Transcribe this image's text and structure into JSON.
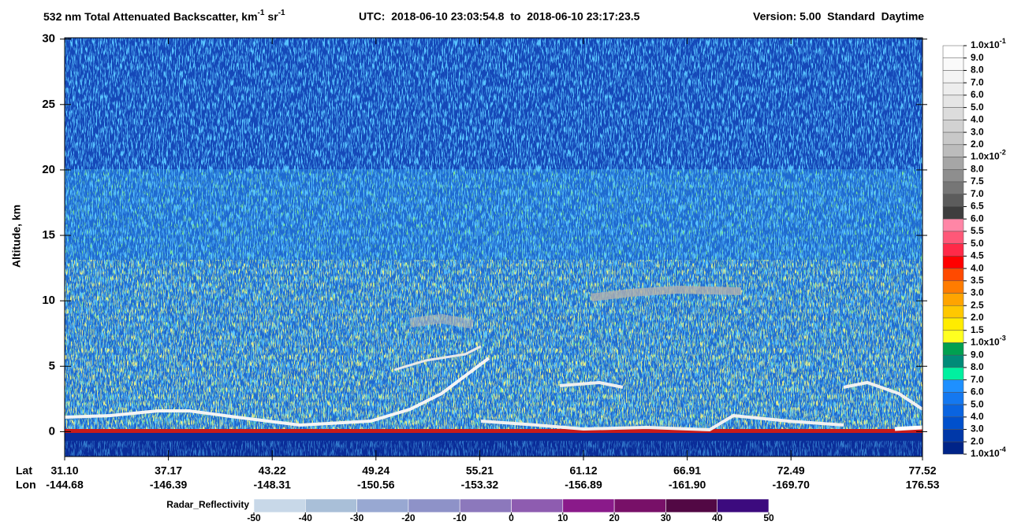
{
  "chart_data": {
    "type": "heatmap",
    "title": {
      "main": "532 nm Total Attenuated Backscatter, km",
      "exp1": "-1",
      "unit2": "sr",
      "exp2": "-1",
      "time": "UTC:  2018-06-10 23:03:54.8  to  2018-06-10 23:17:23.5",
      "version": "Version: 5.00  Standard  Daytime"
    },
    "ylabel": "Altitude, km",
    "ylim": [
      -1.9,
      30.1
    ],
    "yticks": [
      0,
      5,
      10,
      15,
      20,
      25,
      30
    ],
    "x": {
      "lat_label": "Lat",
      "lon_label": "Lon",
      "ticks": [
        {
          "lat": "31.10",
          "lon": "-144.68"
        },
        {
          "lat": "37.17",
          "lon": "-146.39"
        },
        {
          "lat": "43.22",
          "lon": "-148.31"
        },
        {
          "lat": "49.24",
          "lon": "-150.56"
        },
        {
          "lat": "55.21",
          "lon": "-153.32"
        },
        {
          "lat": "61.12",
          "lon": "-156.89"
        },
        {
          "lat": "66.91",
          "lon": "-161.90"
        },
        {
          "lat": "72.49",
          "lon": "-169.70"
        },
        {
          "lat": "77.52",
          "lon": "176.53"
        }
      ]
    },
    "colorbar": {
      "labels": [
        {
          "text": "1.0x10",
          "sup": "-1"
        },
        "9.0",
        "8.0",
        "7.0",
        "6.0",
        "5.0",
        "4.0",
        "3.0",
        "2.0",
        {
          "text": "1.0x10",
          "sup": "-2"
        },
        "8.0",
        "7.5",
        "7.0",
        "6.5",
        "6.0",
        "5.5",
        "5.0",
        "4.5",
        "4.0",
        "3.5",
        "3.0",
        "2.5",
        "2.0",
        "1.5",
        {
          "text": "1.0x10",
          "sup": "-3"
        },
        "9.0",
        "8.0",
        "7.0",
        "6.0",
        "5.0",
        "4.0",
        "3.0",
        "2.0",
        {
          "text": "1.0x10",
          "sup": "-4"
        }
      ],
      "colors": [
        "#ffffff",
        "#fafafa",
        "#f4f4f4",
        "#ededed",
        "#e5e5e5",
        "#dcdcdc",
        "#d2d2d2",
        "#c8c8c8",
        "#bcbcbc",
        "#a6a6a6",
        "#8e8e8e",
        "#767676",
        "#5c5c5c",
        "#3e3e3e",
        "#ff86a6",
        "#ff5878",
        "#ff2a48",
        "#ff0000",
        "#ff4a00",
        "#ff7c00",
        "#ffa400",
        "#ffc800",
        "#ffec00",
        "#ffff20",
        "#00a050",
        "#008b78",
        "#00f0a0",
        "#1e90ff",
        "#1478f0",
        "#0a64e0",
        "#0050cc",
        "#0038a8",
        "#002488"
      ]
    },
    "radar_colorbar": {
      "label": "Radar_Reflectivity",
      "ticks": [
        -50,
        -40,
        -30,
        -20,
        -10,
        0,
        10,
        20,
        30,
        40,
        50
      ],
      "colors": [
        "#c8d8e8",
        "#a9bfd8",
        "#98a8d2",
        "#8e92c8",
        "#8c78bc",
        "#8e5cb0",
        "#8a1a8a",
        "#781068",
        "#520844",
        "#3c0a7e"
      ]
    }
  }
}
